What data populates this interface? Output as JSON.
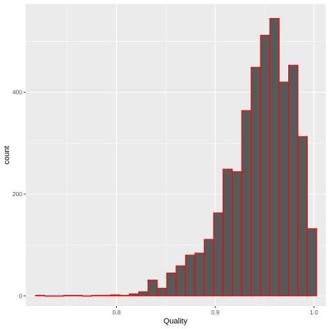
{
  "chart_data": {
    "type": "bar",
    "title": "",
    "xlabel": "Quality",
    "ylabel": "count",
    "xlim": [
      0.708,
      1.012
    ],
    "ylim": [
      -20,
      573
    ],
    "x_ticks": [
      0.8,
      0.9,
      1.0
    ],
    "x_tick_labels": [
      "0.8",
      "0.9",
      "1.0"
    ],
    "y_ticks": [
      0,
      200,
      400
    ],
    "y_tick_labels": [
      "0",
      "200",
      "400"
    ],
    "grid": true,
    "bin_width": 0.0095,
    "bin_start": 0.7178,
    "counts": [
      1,
      0,
      0,
      1,
      1,
      0,
      1,
      1,
      2,
      1,
      4,
      8,
      31,
      15,
      45,
      59,
      80,
      84,
      111,
      163,
      249,
      244,
      364,
      449,
      512,
      545,
      420,
      453,
      313,
      132
    ],
    "colors": {
      "panel_background": "#ebebeb",
      "grid_major": "#ffffff",
      "bar_fill": "#595959",
      "bar_outline": "#ff0000"
    }
  }
}
